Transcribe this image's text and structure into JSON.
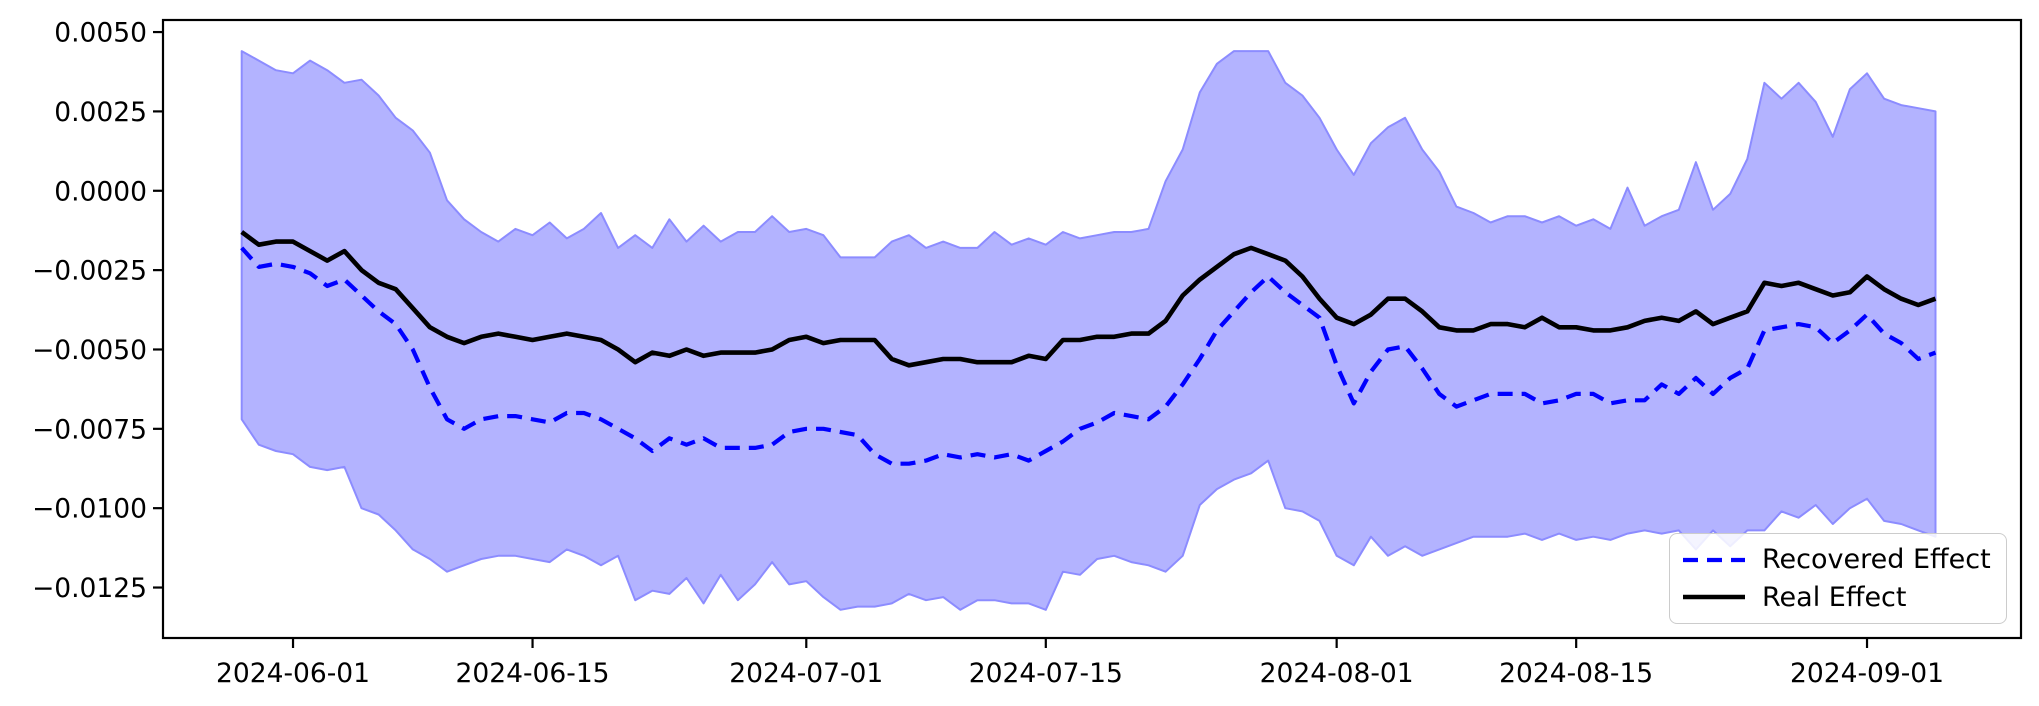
{
  "figure": {
    "background": "#ffffff"
  },
  "chart_data": {
    "type": "line",
    "title": "",
    "xlabel": "",
    "ylabel": "",
    "grid": false,
    "xlim": [
      -4.6,
      104.0
    ],
    "ylim": [
      -0.01409,
      0.00538
    ],
    "x_dates": [
      "2024-05-29",
      "2024-05-30",
      "2024-05-31",
      "2024-06-01",
      "2024-06-02",
      "2024-06-03",
      "2024-06-04",
      "2024-06-05",
      "2024-06-06",
      "2024-06-07",
      "2024-06-08",
      "2024-06-09",
      "2024-06-10",
      "2024-06-11",
      "2024-06-12",
      "2024-06-13",
      "2024-06-14",
      "2024-06-15",
      "2024-06-16",
      "2024-06-17",
      "2024-06-18",
      "2024-06-19",
      "2024-06-20",
      "2024-06-21",
      "2024-06-22",
      "2024-06-23",
      "2024-06-24",
      "2024-06-25",
      "2024-06-26",
      "2024-06-27",
      "2024-06-28",
      "2024-06-29",
      "2024-06-30",
      "2024-07-01",
      "2024-07-02",
      "2024-07-03",
      "2024-07-04",
      "2024-07-05",
      "2024-07-06",
      "2024-07-07",
      "2024-07-08",
      "2024-07-09",
      "2024-07-10",
      "2024-07-11",
      "2024-07-12",
      "2024-07-13",
      "2024-07-14",
      "2024-07-15",
      "2024-07-16",
      "2024-07-17",
      "2024-07-18",
      "2024-07-19",
      "2024-07-20",
      "2024-07-21",
      "2024-07-22",
      "2024-07-23",
      "2024-07-24",
      "2024-07-25",
      "2024-07-26",
      "2024-07-27",
      "2024-07-28",
      "2024-07-29",
      "2024-07-30",
      "2024-07-31",
      "2024-08-01",
      "2024-08-02",
      "2024-08-03",
      "2024-08-04",
      "2024-08-05",
      "2024-08-06",
      "2024-08-07",
      "2024-08-08",
      "2024-08-09",
      "2024-08-10",
      "2024-08-11",
      "2024-08-12",
      "2024-08-13",
      "2024-08-14",
      "2024-08-15",
      "2024-08-16",
      "2024-08-17",
      "2024-08-18",
      "2024-08-19",
      "2024-08-20",
      "2024-08-21",
      "2024-08-22",
      "2024-08-23",
      "2024-08-24",
      "2024-08-25",
      "2024-08-26",
      "2024-08-27",
      "2024-08-28",
      "2024-08-29",
      "2024-08-30",
      "2024-08-31",
      "2024-09-01",
      "2024-09-02",
      "2024-09-03",
      "2024-09-04",
      "2024-09-05"
    ],
    "series": [
      {
        "name": "Recovered Effect",
        "color": "#0000ff",
        "line_style": "dashed",
        "values": [
          -0.0018,
          -0.0024,
          -0.0023,
          -0.0024,
          -0.0026,
          -0.003,
          -0.0028,
          -0.0033,
          -0.0038,
          -0.0042,
          -0.005,
          -0.0062,
          -0.0072,
          -0.0075,
          -0.0072,
          -0.0071,
          -0.0071,
          -0.0072,
          -0.0073,
          -0.007,
          -0.007,
          -0.0072,
          -0.0075,
          -0.0078,
          -0.0082,
          -0.0078,
          -0.008,
          -0.0078,
          -0.0081,
          -0.0081,
          -0.0081,
          -0.008,
          -0.0076,
          -0.0075,
          -0.0075,
          -0.0076,
          -0.0077,
          -0.0083,
          -0.0086,
          -0.0086,
          -0.0085,
          -0.0083,
          -0.0084,
          -0.0083,
          -0.0084,
          -0.0083,
          -0.0085,
          -0.0082,
          -0.0079,
          -0.0075,
          -0.0073,
          -0.007,
          -0.0071,
          -0.0072,
          -0.0068,
          -0.0061,
          -0.0053,
          -0.0044,
          -0.0038,
          -0.0032,
          -0.0027,
          -0.0032,
          -0.0036,
          -0.004,
          -0.0055,
          -0.0067,
          -0.0057,
          -0.005,
          -0.0049,
          -0.0056,
          -0.0064,
          -0.0068,
          -0.0066,
          -0.0064,
          -0.0064,
          -0.0064,
          -0.0067,
          -0.0066,
          -0.0064,
          -0.0064,
          -0.0067,
          -0.0066,
          -0.0066,
          -0.0061,
          -0.0064,
          -0.0059,
          -0.0064,
          -0.0059,
          -0.0056,
          -0.0044,
          -0.0043,
          -0.0042,
          -0.0043,
          -0.0048,
          -0.0044,
          -0.0039,
          -0.0045,
          -0.0048,
          -0.0053,
          -0.0051
        ]
      },
      {
        "name": "Real Effect",
        "color": "#000000",
        "line_style": "solid",
        "values": [
          -0.0013,
          -0.0017,
          -0.0016,
          -0.0016,
          -0.0019,
          -0.0022,
          -0.0019,
          -0.0025,
          -0.0029,
          -0.0031,
          -0.0037,
          -0.0043,
          -0.0046,
          -0.0048,
          -0.0046,
          -0.0045,
          -0.0046,
          -0.0047,
          -0.0046,
          -0.0045,
          -0.0046,
          -0.0047,
          -0.005,
          -0.0054,
          -0.0051,
          -0.0052,
          -0.005,
          -0.0052,
          -0.0051,
          -0.0051,
          -0.0051,
          -0.005,
          -0.0047,
          -0.0046,
          -0.0048,
          -0.0047,
          -0.0047,
          -0.0047,
          -0.0053,
          -0.0055,
          -0.0054,
          -0.0053,
          -0.0053,
          -0.0054,
          -0.0054,
          -0.0054,
          -0.0052,
          -0.0053,
          -0.0047,
          -0.0047,
          -0.0046,
          -0.0046,
          -0.0045,
          -0.0045,
          -0.0041,
          -0.0033,
          -0.0028,
          -0.0024,
          -0.002,
          -0.0018,
          -0.002,
          -0.0022,
          -0.0027,
          -0.0034,
          -0.004,
          -0.0042,
          -0.0039,
          -0.0034,
          -0.0034,
          -0.0038,
          -0.0043,
          -0.0044,
          -0.0044,
          -0.0042,
          -0.0042,
          -0.0043,
          -0.004,
          -0.0043,
          -0.0043,
          -0.0044,
          -0.0044,
          -0.0043,
          -0.0041,
          -0.004,
          -0.0041,
          -0.0038,
          -0.0042,
          -0.004,
          -0.0038,
          -0.0029,
          -0.003,
          -0.0029,
          -0.0031,
          -0.0033,
          -0.0032,
          -0.0027,
          -0.0031,
          -0.0034,
          -0.0036,
          -0.0034
        ]
      }
    ],
    "band": {
      "name": "confidence-band",
      "fill": "#b3b3ff",
      "edge": "#8c8cff",
      "upper": [
        0.0044,
        0.0041,
        0.0038,
        0.0037,
        0.0041,
        0.0038,
        0.0034,
        0.0035,
        0.003,
        0.0023,
        0.0019,
        0.0012,
        -0.0003,
        -0.0009,
        -0.0013,
        -0.0016,
        -0.0012,
        -0.0014,
        -0.001,
        -0.0015,
        -0.0012,
        -0.0007,
        -0.0018,
        -0.0014,
        -0.0018,
        -0.0009,
        -0.0016,
        -0.0011,
        -0.0016,
        -0.0013,
        -0.0013,
        -0.0008,
        -0.0013,
        -0.0012,
        -0.0014,
        -0.0021,
        -0.0021,
        -0.0021,
        -0.0016,
        -0.0014,
        -0.0018,
        -0.0016,
        -0.0018,
        -0.0018,
        -0.0013,
        -0.0017,
        -0.0015,
        -0.0017,
        -0.0013,
        -0.0015,
        -0.0014,
        -0.0013,
        -0.0013,
        -0.0012,
        0.0003,
        0.0013,
        0.0031,
        0.004,
        0.0044,
        0.0044,
        0.0044,
        0.0034,
        0.003,
        0.0023,
        0.0013,
        0.0005,
        0.0015,
        0.002,
        0.0023,
        0.0013,
        0.0006,
        -0.0005,
        -0.0007,
        -0.001,
        -0.0008,
        -0.0008,
        -0.001,
        -0.0008,
        -0.0011,
        -0.0009,
        -0.0012,
        0.0001,
        -0.0011,
        -0.0008,
        -0.0006,
        0.0009,
        -0.0006,
        -0.0001,
        0.001,
        0.0034,
        0.0029,
        0.0034,
        0.0028,
        0.0017,
        0.0032,
        0.0037,
        0.0029,
        0.0027,
        0.0026,
        0.0025
      ],
      "lower": [
        -0.0072,
        -0.008,
        -0.0082,
        -0.0083,
        -0.0087,
        -0.0088,
        -0.0087,
        -0.01,
        -0.0102,
        -0.0107,
        -0.0113,
        -0.0116,
        -0.012,
        -0.0118,
        -0.0116,
        -0.0115,
        -0.0115,
        -0.0116,
        -0.0117,
        -0.0113,
        -0.0115,
        -0.0118,
        -0.0115,
        -0.0129,
        -0.0126,
        -0.0127,
        -0.0122,
        -0.013,
        -0.0121,
        -0.0129,
        -0.0124,
        -0.0117,
        -0.0124,
        -0.0123,
        -0.0128,
        -0.0132,
        -0.0131,
        -0.0131,
        -0.013,
        -0.0127,
        -0.0129,
        -0.0128,
        -0.0132,
        -0.0129,
        -0.0129,
        -0.013,
        -0.013,
        -0.0132,
        -0.012,
        -0.0121,
        -0.0116,
        -0.0115,
        -0.0117,
        -0.0118,
        -0.012,
        -0.0115,
        -0.0099,
        -0.0094,
        -0.0091,
        -0.0089,
        -0.0085,
        -0.01,
        -0.0101,
        -0.0104,
        -0.0115,
        -0.0118,
        -0.0109,
        -0.0115,
        -0.0112,
        -0.0115,
        -0.0113,
        -0.0111,
        -0.0109,
        -0.0109,
        -0.0109,
        -0.0108,
        -0.011,
        -0.0108,
        -0.011,
        -0.0109,
        -0.011,
        -0.0108,
        -0.0107,
        -0.0108,
        -0.0107,
        -0.0113,
        -0.0107,
        -0.0112,
        -0.0107,
        -0.0107,
        -0.0101,
        -0.0103,
        -0.0099,
        -0.0105,
        -0.01,
        -0.0097,
        -0.0104,
        -0.0105,
        -0.0107,
        -0.0109
      ]
    },
    "x_axis": {
      "ticks": [
        {
          "index": 3,
          "label": "2024-06-01"
        },
        {
          "index": 17,
          "label": "2024-06-15"
        },
        {
          "index": 33,
          "label": "2024-07-01"
        },
        {
          "index": 47,
          "label": "2024-07-15"
        },
        {
          "index": 64,
          "label": "2024-08-01"
        },
        {
          "index": 78,
          "label": "2024-08-15"
        },
        {
          "index": 95,
          "label": "2024-09-01"
        }
      ]
    },
    "y_axis": {
      "ticks": [
        {
          "value": 0.005,
          "label": "0.0050"
        },
        {
          "value": 0.0025,
          "label": "0.0025"
        },
        {
          "value": 0.0,
          "label": "0.0000"
        },
        {
          "value": -0.0025,
          "label": "−0.0025"
        },
        {
          "value": -0.005,
          "label": "−0.0050"
        },
        {
          "value": -0.0075,
          "label": "−0.0075"
        },
        {
          "value": -0.01,
          "label": "−0.0100"
        },
        {
          "value": -0.0125,
          "label": "−0.0125"
        }
      ]
    },
    "legend": {
      "position": "lower right",
      "items": [
        {
          "label": "Recovered Effect",
          "color": "#0000ff",
          "style": "dashed"
        },
        {
          "label": "Real Effect",
          "color": "#000000",
          "style": "solid"
        }
      ]
    }
  }
}
